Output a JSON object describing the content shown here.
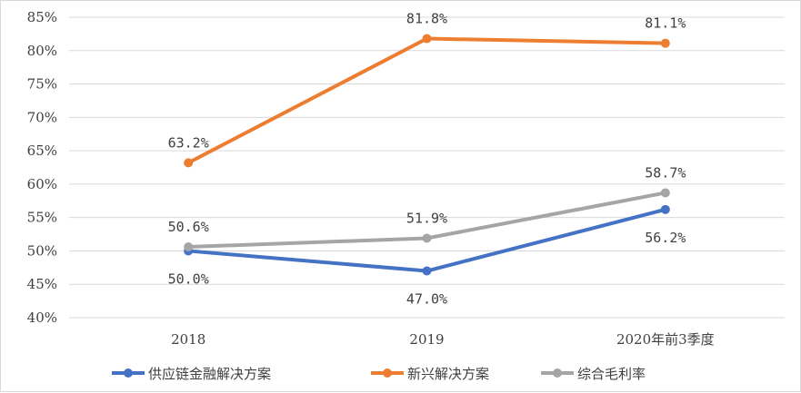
{
  "chart_data": {
    "type": "line",
    "categories": [
      "2018",
      "2019",
      "2020年前3季度"
    ],
    "ylim": [
      40,
      85
    ],
    "yticks": [
      40,
      45,
      50,
      55,
      60,
      65,
      70,
      75,
      80,
      85
    ],
    "ytick_labels": [
      "40%",
      "45%",
      "50%",
      "55%",
      "60%",
      "65%",
      "70%",
      "75%",
      "80%",
      "85%"
    ],
    "grid": true,
    "legend_position": "bottom",
    "series": [
      {
        "name": "供应链金融解决方案",
        "color": "#4472c4",
        "values": [
          50.0,
          47.0,
          56.2
        ],
        "labels": [
          "50.0%",
          "47.0%",
          "56.2%"
        ],
        "label_positions": [
          "below",
          "below",
          "below"
        ]
      },
      {
        "name": "新兴解决方案",
        "color": "#ed7d31",
        "values": [
          63.2,
          81.8,
          81.1
        ],
        "labels": [
          "63.2%",
          "81.8%",
          "81.1%"
        ],
        "label_positions": [
          "above",
          "above",
          "above"
        ]
      },
      {
        "name": "综合毛利率",
        "color": "#a5a5a5",
        "values": [
          50.6,
          51.9,
          58.7
        ],
        "labels": [
          "50.6%",
          "51.9%",
          "58.7%"
        ],
        "label_positions": [
          "above",
          "above",
          "above"
        ]
      }
    ]
  }
}
